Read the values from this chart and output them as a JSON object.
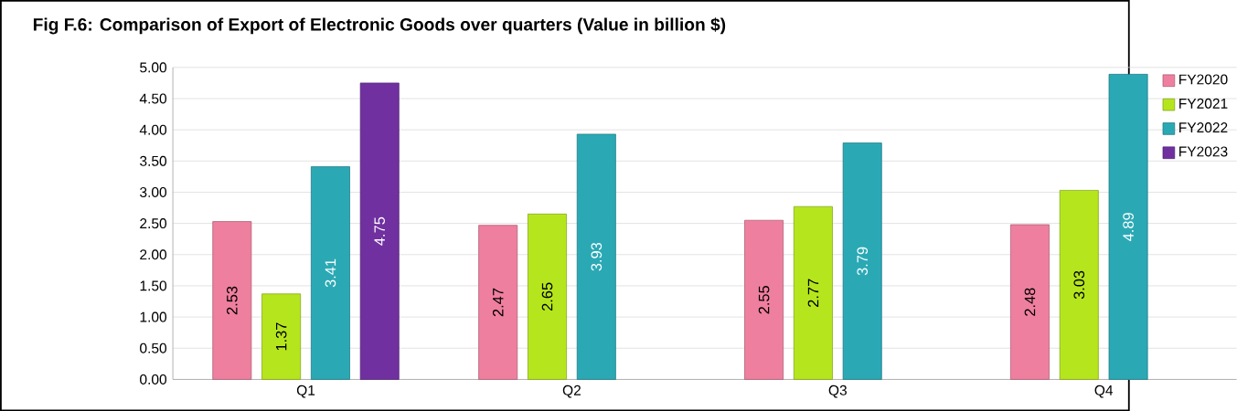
{
  "chart_data": {
    "type": "bar",
    "title": "Fig F.6: Comparison of Export of Electronic Goods over quarters (Value in billion $)",
    "categories": [
      "Q1",
      "Q2",
      "Q3",
      "Q4"
    ],
    "series": [
      {
        "name": "FY2020",
        "color": "#ef7f9f",
        "values": [
          2.53,
          2.47,
          2.55,
          2.48
        ]
      },
      {
        "name": "FY2021",
        "color": "#b5e61d",
        "values": [
          1.37,
          2.65,
          2.77,
          3.03
        ]
      },
      {
        "name": "FY2022",
        "color": "#2aa9b5",
        "values": [
          3.41,
          3.93,
          3.79,
          4.89
        ]
      },
      {
        "name": "FY2023",
        "color": "#7030a0",
        "values": [
          4.75,
          null,
          null,
          null
        ]
      }
    ],
    "ylim": [
      0,
      5
    ],
    "yticks": [
      {
        "value": 0,
        "label": "0.00"
      },
      {
        "value": 0.5,
        "label": "0.50"
      },
      {
        "value": 1,
        "label": "1.00"
      },
      {
        "value": 1.5,
        "label": "1.50"
      },
      {
        "value": 2,
        "label": "2.00"
      },
      {
        "value": 2.5,
        "label": "2.50"
      },
      {
        "value": 3,
        "label": "3.00"
      },
      {
        "value": 3.5,
        "label": "3.50"
      },
      {
        "value": 4,
        "label": "4.00"
      },
      {
        "value": 4.5,
        "label": "4.50"
      },
      {
        "value": 5,
        "label": "5.00"
      }
    ],
    "grid": "y",
    "legend": "top right",
    "data_labels": true
  }
}
